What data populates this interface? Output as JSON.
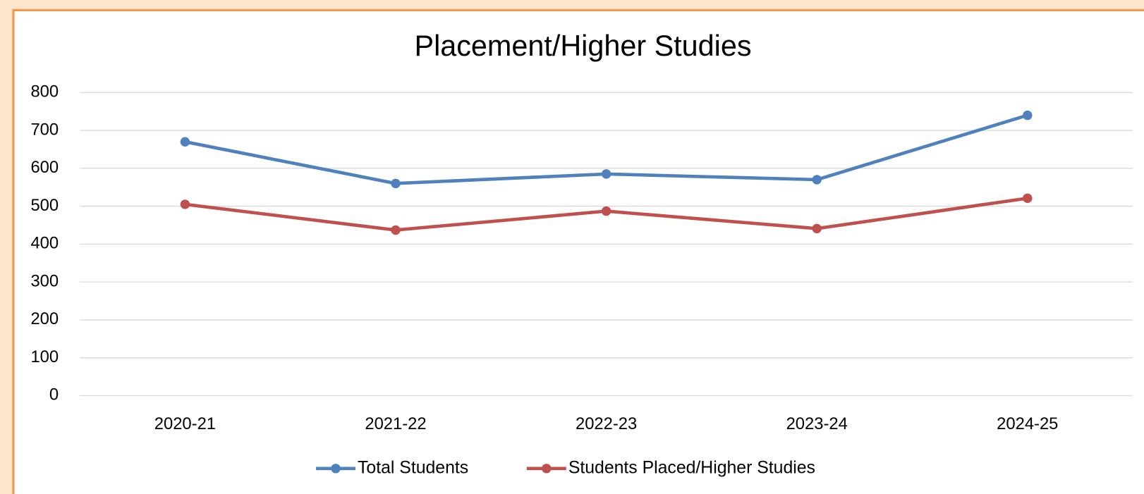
{
  "chart_data": {
    "type": "line",
    "title": "Placement/Higher Studies",
    "categories": [
      "2020-21",
      "2021-22",
      "2022-23",
      "2023-24",
      "2024-25"
    ],
    "series": [
      {
        "name": "Total Students",
        "color": "#4f81bd",
        "values": [
          670,
          560,
          585,
          570,
          740
        ]
      },
      {
        "name": "Students Placed/Higher Studies",
        "color": "#c0504d",
        "values": [
          505,
          437,
          487,
          441,
          521
        ]
      }
    ],
    "ylim": [
      0,
      800
    ],
    "yticks": [
      0,
      100,
      200,
      300,
      400,
      500,
      600,
      700,
      800
    ],
    "grid": true,
    "legend": "bottom"
  }
}
